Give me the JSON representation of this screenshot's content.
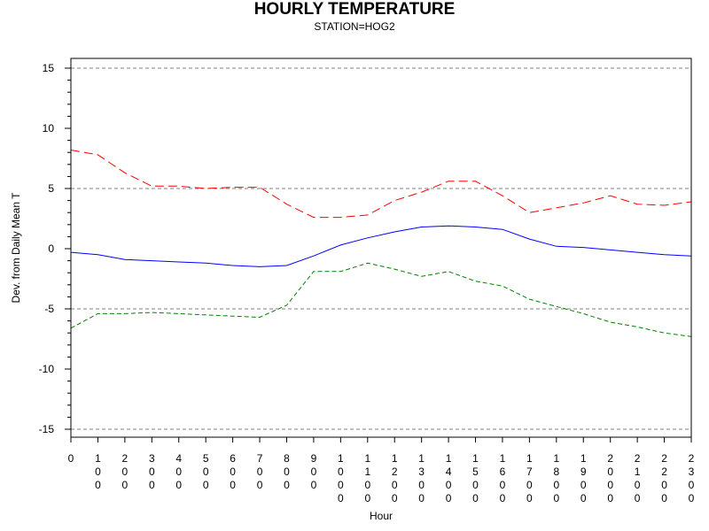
{
  "chart_data": {
    "type": "line",
    "title": "HOURLY TEMPERATURE",
    "subtitle": "STATION=HOG2",
    "xlabel": "Hour",
    "ylabel": "Dev. from Daily Mean T",
    "ylim": [
      -15,
      15
    ],
    "y_ticks": [
      -15,
      -10,
      -5,
      0,
      5,
      10,
      15
    ],
    "y_tick_labels": [
      "-15",
      "-10",
      "-5",
      "0",
      "5",
      "10",
      "15"
    ],
    "reference_lines": [
      -15,
      -5,
      5,
      15
    ],
    "x": [
      "0",
      "100",
      "200",
      "300",
      "400",
      "500",
      "600",
      "700",
      "800",
      "900",
      "1000",
      "1100",
      "1200",
      "1300",
      "1400",
      "1500",
      "1600",
      "1700",
      "1800",
      "1900",
      "2000",
      "2100",
      "2200",
      "2300"
    ],
    "series": [
      {
        "color": "#ff0000",
        "style": "long-dash",
        "values": [
          8.2,
          7.8,
          6.3,
          5.2,
          5.2,
          5.0,
          5.1,
          5.1,
          3.7,
          2.6,
          2.6,
          2.8,
          4.0,
          4.7,
          5.6,
          5.6,
          4.4,
          3.0,
          3.4,
          3.8,
          4.4,
          3.7,
          3.6,
          3.9
        ]
      },
      {
        "color": "#0000ff",
        "style": "solid",
        "values": [
          -0.3,
          -0.5,
          -0.9,
          -1.0,
          -1.1,
          -1.2,
          -1.4,
          -1.5,
          -1.4,
          -0.6,
          0.3,
          0.9,
          1.4,
          1.8,
          1.9,
          1.8,
          1.6,
          0.8,
          0.2,
          0.1,
          -0.1,
          -0.3,
          -0.5,
          -0.6
        ]
      },
      {
        "color": "#008000",
        "style": "short-dash",
        "values": [
          -6.6,
          -5.4,
          -5.4,
          -5.3,
          -5.4,
          -5.5,
          -5.6,
          -5.7,
          -4.7,
          -1.9,
          -1.9,
          -1.2,
          -1.7,
          -2.3,
          -1.9,
          -2.7,
          -3.1,
          -4.2,
          -4.8,
          -5.4,
          -6.1,
          -6.5,
          -7.0,
          -7.3
        ]
      }
    ]
  }
}
